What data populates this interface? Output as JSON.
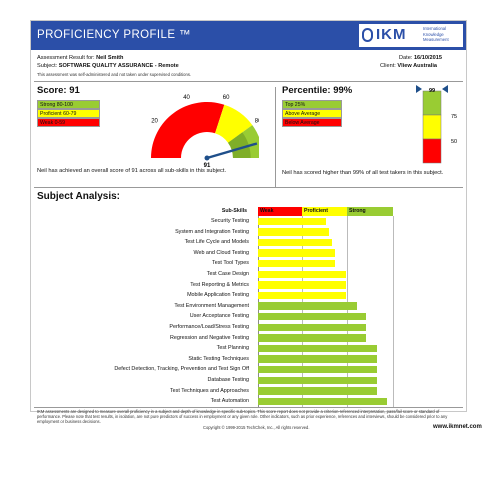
{
  "header": {
    "title": "PROFICIENCY PROFILE ™",
    "logo_text": "IKM",
    "logo_sub": [
      "International",
      "Knowledge",
      "Measurement"
    ]
  },
  "meta": {
    "result_label": "Assessment Result for:",
    "result_name": "Neil Smith",
    "date_label": "Date:",
    "date_value": "16/10/2015",
    "subject_label": "Subject:",
    "subject_value": "SOFTWARE QUALITY ASSURANCE - Remote",
    "client_label": "Client:",
    "client_value": "Vliew Australia",
    "notice": "This assessment was self-administered and not taken under supervised conditions."
  },
  "score": {
    "title": "Score: 91",
    "value": 91,
    "legend": [
      {
        "label": "Strong 80-100",
        "color": "#99cc33"
      },
      {
        "label": "Proficient 60-79",
        "color": "#ffff00"
      },
      {
        "label": "Weak 0-59",
        "color": "#ff0000"
      }
    ],
    "gauge_ticks": [
      "20",
      "40",
      "60",
      "80",
      "100"
    ],
    "needle_label": "91",
    "text": "Neil has achieved an overall score of 91 across all sub-skills in this subject."
  },
  "percentile": {
    "title": "Percentile: 99%",
    "value": 99,
    "legend": [
      {
        "label": "Top 25%",
        "color": "#99cc33"
      },
      {
        "label": "Above Average",
        "color": "#ffff00"
      },
      {
        "label": "Below Average",
        "color": "#ff0000"
      }
    ],
    "bar_ticks": [
      "99",
      "75",
      "50"
    ],
    "text": "Neil has scored higher than 99% of all test takers in this subject."
  },
  "analysis": {
    "title": "Subject Analysis:",
    "col_subskills": "Sub-Skills",
    "col_weak": "Weak",
    "col_proficient": "Proficient",
    "col_strong": "Strong",
    "colors": {
      "weak": "#ff0000",
      "proficient": "#ffff00",
      "strong": "#99cc33"
    }
  },
  "chart_data": {
    "type": "bar",
    "categories": [
      "Security Testing",
      "System and Integration Testing",
      "Test Life Cycle and Models",
      "Web and Cloud Testing",
      "Test Tool Types",
      "Test Case Design",
      "Test Reporting & Metrics",
      "Mobile Application Testing",
      "Test Environment Management",
      "User Acceptance Testing",
      "Performance/Load/Stress Testing",
      "Regression and Negative Testing",
      "Test Planning",
      "Static Testing Techniques",
      "Defect Detection, Tracking, Prevention and Test Sign Off",
      "Database Testing",
      "Test Techniques and Approaches",
      "Test Automation"
    ],
    "values": [
      60,
      63,
      66,
      68,
      68,
      78,
      78,
      78,
      88,
      96,
      96,
      96,
      106,
      106,
      106,
      106,
      106,
      115
    ],
    "colors": [
      "#ffff00",
      "#ffff00",
      "#ffff00",
      "#ffff00",
      "#ffff00",
      "#ffff00",
      "#ffff00",
      "#ffff00",
      "#99cc33",
      "#99cc33",
      "#99cc33",
      "#99cc33",
      "#99cc33",
      "#99cc33",
      "#99cc33",
      "#99cc33",
      "#99cc33",
      "#99cc33"
    ],
    "orientation": "horizontal",
    "xlim": [
      0,
      120
    ],
    "grid": true
  },
  "footer": {
    "text": "IKM assessments are designed to measure overall proficiency in a subject and depth of knowledge in specific sub-topics. This score report does not provide a criterion-referenced interpretation, pass/fail score or standard of performance. Please note that test results, in isolation, are not pure predictors of success in employment or any given role. Other indicators, such as prior experience, references and interviews, should be considered prior to any employment or business decisions.",
    "copyright": "Copyright © 1999-2015 TechChek, Inc., All rights reserved.",
    "url": "www.ikmnet.com"
  }
}
